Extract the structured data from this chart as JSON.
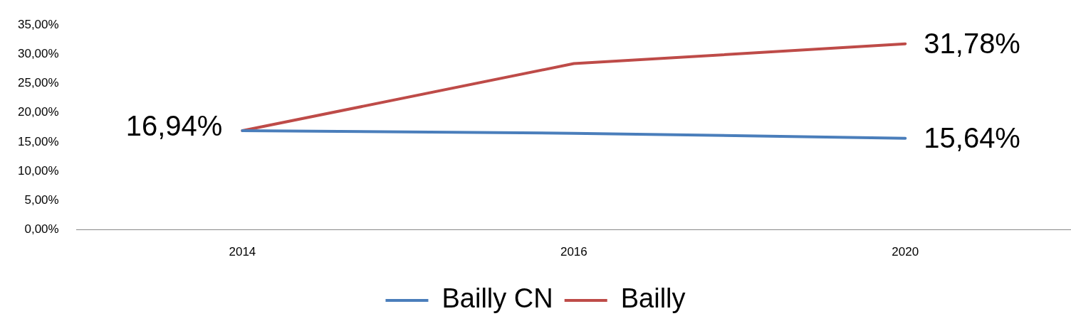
{
  "chart_data": {
    "type": "line",
    "categories": [
      "2014",
      "2016",
      "2020"
    ],
    "series": [
      {
        "name": "Bailly CN",
        "color": "#4a7ebb",
        "values": [
          16.94,
          16.5,
          15.64
        ],
        "value_labels": [
          "16,94%",
          null,
          "15,64%"
        ]
      },
      {
        "name": "Bailly",
        "color": "#be4b48",
        "values": [
          16.94,
          28.4,
          31.78
        ],
        "value_labels": [
          null,
          null,
          "31,78%"
        ]
      }
    ],
    "ylim": [
      0,
      35
    ],
    "yticks": [
      {
        "value": 0,
        "label": "0,00%"
      },
      {
        "value": 5,
        "label": "5,00%"
      },
      {
        "value": 10,
        "label": "10,00%"
      },
      {
        "value": 15,
        "label": "15,00%"
      },
      {
        "value": 20,
        "label": "20,00%"
      },
      {
        "value": 25,
        "label": "25,00%"
      },
      {
        "value": 30,
        "label": "30,00%"
      },
      {
        "value": 35,
        "label": "35,00%"
      }
    ],
    "grid": false,
    "legend": "bottom",
    "marker": "none",
    "line_style": "solid"
  }
}
